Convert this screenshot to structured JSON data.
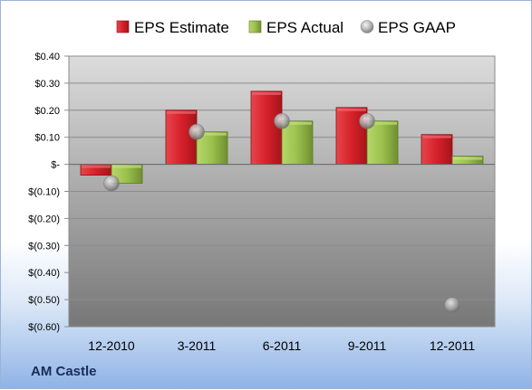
{
  "company": "AM Castle",
  "colors": {
    "estimate": "#d6212a",
    "actual": "#9bc04d",
    "gaap": "#b7b7b7",
    "plot_top": "#dcdcdc",
    "plot_bottom": "#777777"
  },
  "chart_data": {
    "type": "bar",
    "categories": [
      "12-2010",
      "3-2011",
      "6-2011",
      "9-2011",
      "12-2011"
    ],
    "series": [
      {
        "name": "EPS Estimate",
        "kind": "bar",
        "values": [
          -0.04,
          0.2,
          0.27,
          0.21,
          0.11
        ]
      },
      {
        "name": "EPS Actual",
        "kind": "bar",
        "values": [
          -0.07,
          0.12,
          0.16,
          0.16,
          0.03
        ]
      },
      {
        "name": "EPS GAAP",
        "kind": "marker",
        "values": [
          -0.07,
          0.12,
          0.16,
          0.16,
          -0.52
        ]
      }
    ],
    "ylim": [
      -0.6,
      0.4
    ],
    "yticks": [
      0.4,
      0.3,
      0.2,
      0.1,
      0,
      -0.1,
      -0.2,
      -0.3,
      -0.4,
      -0.5,
      -0.6
    ],
    "ytick_labels": [
      "$0.40",
      "$0.30",
      "$0.20",
      "$0.10",
      "$-",
      "$(0.10)",
      "$(0.20)",
      "$(0.30)",
      "$(0.40)",
      "$(0.50)",
      "$(0.60)"
    ],
    "legend_position": "top",
    "grid": true
  }
}
